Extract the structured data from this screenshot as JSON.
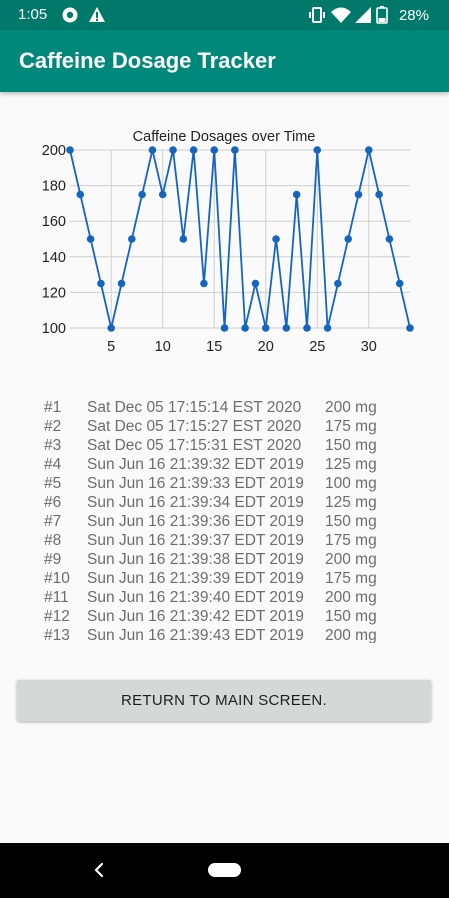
{
  "status_bar": {
    "time": "1:05",
    "battery_text": "28%",
    "icons": [
      "camera-icon",
      "alert-icon",
      "vibrate-icon",
      "wifi-icon",
      "signal-icon",
      "battery-icon"
    ]
  },
  "app_bar": {
    "title": "Caffeine Dosage Tracker"
  },
  "chart_data": {
    "type": "line",
    "title": "Caffeine Dosages over Time",
    "x": [
      1,
      2,
      3,
      4,
      5,
      6,
      7,
      8,
      9,
      10,
      11,
      12,
      13,
      14,
      15,
      16,
      17,
      18,
      19,
      20,
      21,
      22,
      23,
      24,
      25,
      26,
      27,
      28,
      29,
      30,
      31,
      32,
      33,
      34
    ],
    "values": [
      200,
      175,
      150,
      125,
      100,
      125,
      150,
      175,
      200,
      175,
      200,
      150,
      200,
      125,
      200,
      100,
      200,
      100,
      125,
      100,
      150,
      100,
      175,
      100,
      200,
      100,
      125,
      150,
      175,
      200,
      175,
      150,
      125,
      100
    ],
    "x_ticks": [
      "5",
      "10",
      "15",
      "20",
      "25",
      "30"
    ],
    "y_ticks": [
      "100",
      "120",
      "140",
      "160",
      "180",
      "200"
    ],
    "xlim": [
      1,
      34
    ],
    "ylim": [
      100,
      200
    ],
    "color": "#1565c0"
  },
  "log": [
    {
      "num": "#1",
      "date": "Sat Dec 05 17:15:14 EST 2020",
      "dose": "200 mg"
    },
    {
      "num": "#2",
      "date": "Sat Dec 05 17:15:27 EST 2020",
      "dose": "175 mg"
    },
    {
      "num": "#3",
      "date": "Sat Dec 05 17:15:31 EST 2020",
      "dose": "150 mg"
    },
    {
      "num": "#4",
      "date": "Sun Jun 16 21:39:32 EDT 2019",
      "dose": "125 mg"
    },
    {
      "num": "#5",
      "date": "Sun Jun 16 21:39:33 EDT 2019",
      "dose": "100 mg"
    },
    {
      "num": "#6",
      "date": "Sun Jun 16 21:39:34 EDT 2019",
      "dose": "125 mg"
    },
    {
      "num": "#7",
      "date": "Sun Jun 16 21:39:36 EDT 2019",
      "dose": "150 mg"
    },
    {
      "num": "#8",
      "date": "Sun Jun 16 21:39:37 EDT 2019",
      "dose": "175 mg"
    },
    {
      "num": "#9",
      "date": "Sun Jun 16 21:39:38 EDT 2019",
      "dose": "200 mg"
    },
    {
      "num": "#10",
      "date": "Sun Jun 16 21:39:39 EDT 2019",
      "dose": "175 mg"
    },
    {
      "num": "#11",
      "date": "Sun Jun 16 21:39:40 EDT 2019",
      "dose": "200 mg"
    },
    {
      "num": "#12",
      "date": "Sun Jun 16 21:39:42 EDT 2019",
      "dose": "150 mg"
    },
    {
      "num": "#13",
      "date": "Sun Jun 16 21:39:43 EDT 2019",
      "dose": "200 mg"
    }
  ],
  "return_button": {
    "label": "RETURN TO MAIN SCREEN."
  },
  "nav_bar": {
    "icons": [
      "back-icon",
      "home-pill-icon"
    ]
  }
}
